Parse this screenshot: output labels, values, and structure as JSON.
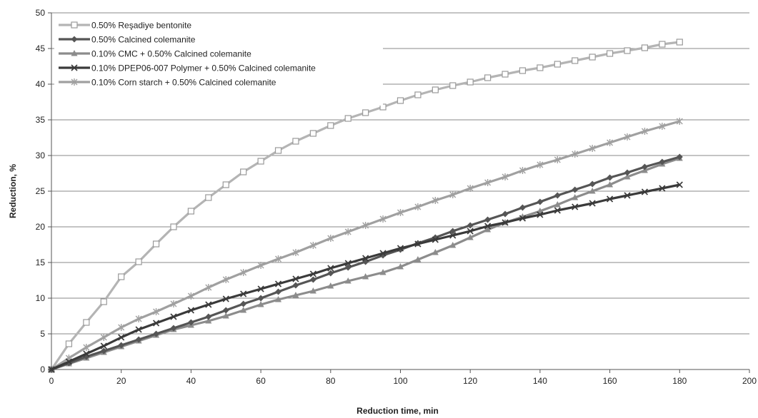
{
  "chart_data": {
    "type": "line",
    "xlabel": "Reduction time, min",
    "ylabel": "Reduction, %",
    "xlim": [
      0,
      200
    ],
    "ylim": [
      0,
      50
    ],
    "xticks": [
      0,
      20,
      40,
      60,
      80,
      100,
      120,
      140,
      160,
      180,
      200
    ],
    "yticks": [
      0,
      5,
      10,
      15,
      20,
      25,
      30,
      35,
      40,
      45,
      50
    ],
    "grid": "horizontal",
    "legend_position": "top-left",
    "x": [
      0,
      5,
      10,
      15,
      20,
      25,
      30,
      35,
      40,
      45,
      50,
      55,
      60,
      65,
      70,
      75,
      80,
      85,
      90,
      95,
      100,
      105,
      110,
      115,
      120,
      125,
      130,
      135,
      140,
      145,
      150,
      155,
      160,
      165,
      170,
      175,
      180
    ],
    "series": [
      {
        "name": "0.50% Reşadiye bentonite",
        "marker": "square-open",
        "color": "#b4b4b4",
        "values": [
          0,
          3.6,
          6.6,
          9.5,
          13.0,
          15.1,
          17.6,
          20.0,
          22.2,
          24.1,
          25.9,
          27.7,
          29.2,
          30.7,
          32.0,
          33.1,
          34.2,
          35.2,
          36.0,
          36.8,
          37.7,
          38.5,
          39.2,
          39.8,
          40.3,
          40.9,
          41.4,
          41.9,
          42.3,
          42.8,
          43.3,
          43.8,
          44.3,
          44.7,
          45.1,
          45.6,
          45.9
        ]
      },
      {
        "name": "0.50% Calcined colemanite",
        "marker": "diamond",
        "color": "#555555",
        "values": [
          0,
          0.9,
          1.8,
          2.6,
          3.4,
          4.2,
          5.0,
          5.8,
          6.6,
          7.4,
          8.3,
          9.2,
          10.0,
          10.9,
          11.8,
          12.6,
          13.5,
          14.3,
          15.1,
          16.0,
          16.8,
          17.7,
          18.5,
          19.4,
          20.2,
          21.0,
          21.8,
          22.7,
          23.5,
          24.4,
          25.2,
          26.0,
          26.9,
          27.6,
          28.4,
          29.1,
          29.8
        ]
      },
      {
        "name": "0.10% CMC + 0.50% Calcined colemanite",
        "marker": "triangle",
        "color": "#8c8c8c",
        "values": [
          0,
          0.8,
          1.6,
          2.4,
          3.2,
          4.0,
          4.8,
          5.6,
          6.2,
          6.8,
          7.5,
          8.3,
          9.1,
          9.8,
          10.4,
          11.0,
          11.7,
          12.4,
          13.0,
          13.6,
          14.4,
          15.4,
          16.4,
          17.4,
          18.5,
          19.6,
          20.6,
          21.4,
          22.2,
          23.1,
          24.1,
          25.0,
          25.9,
          27.0,
          27.9,
          28.8,
          29.6
        ]
      },
      {
        "name": "0.10% DPEP06-007 Polymer + 0.50% Calcined colemanite",
        "marker": "x",
        "color": "#3a3a3a",
        "values": [
          0,
          1.1,
          2.2,
          3.3,
          4.5,
          5.6,
          6.5,
          7.4,
          8.3,
          9.1,
          9.9,
          10.6,
          11.3,
          12.0,
          12.7,
          13.4,
          14.2,
          14.9,
          15.6,
          16.3,
          17.0,
          17.6,
          18.2,
          18.8,
          19.4,
          20.1,
          20.6,
          21.2,
          21.7,
          22.3,
          22.8,
          23.3,
          23.9,
          24.4,
          24.9,
          25.4,
          25.9
        ]
      },
      {
        "name": "0.10% Corn starch + 0.50% Calcined colemanite",
        "marker": "asterisk",
        "color": "#a0a0a0",
        "values": [
          0,
          1.6,
          3.1,
          4.5,
          5.9,
          7.1,
          8.1,
          9.2,
          10.3,
          11.5,
          12.6,
          13.6,
          14.6,
          15.5,
          16.4,
          17.4,
          18.4,
          19.3,
          20.2,
          21.1,
          22.0,
          22.8,
          23.7,
          24.5,
          25.4,
          26.2,
          27.0,
          27.9,
          28.7,
          29.4,
          30.2,
          31.0,
          31.8,
          32.6,
          33.4,
          34.1,
          34.8
        ]
      }
    ]
  }
}
